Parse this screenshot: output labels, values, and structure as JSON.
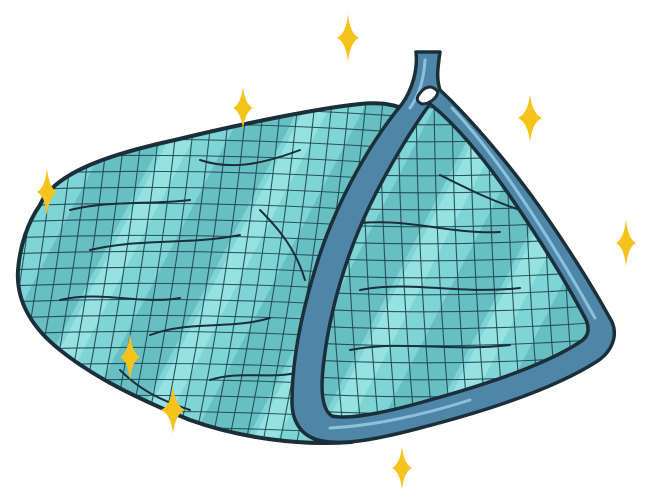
{
  "image": {
    "subject": "net-bag-icon",
    "background": "#ffffff"
  },
  "colors": {
    "mesh_fill": "#7fd4d6",
    "mesh_shade": "#5fb8bb",
    "mesh_highlight": "#a9ecec",
    "mesh_line": "#1e4650",
    "frame_fill": "#4f86a8",
    "frame_highlight": "#8cc1de",
    "outline": "#1b2f3a",
    "sparkle": "#f6c21c"
  },
  "icons": [
    "net-bag-icon",
    "net-frame-icon",
    "sparkle-icon"
  ]
}
